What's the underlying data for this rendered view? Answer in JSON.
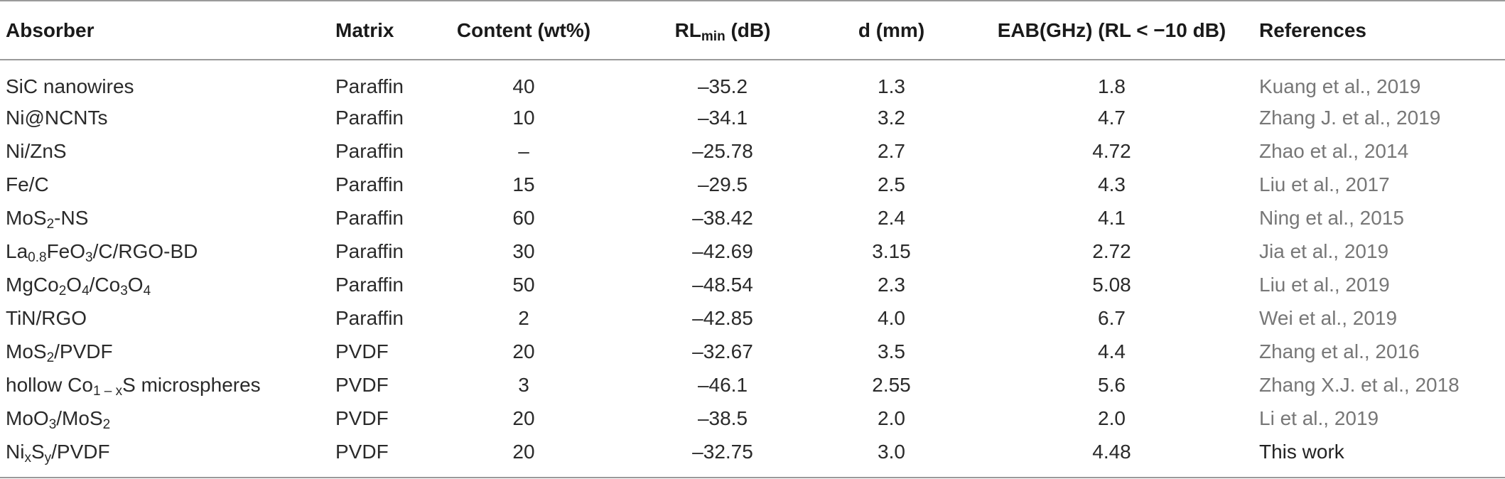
{
  "headers": {
    "absorber": "Absorber",
    "matrix": "Matrix",
    "content": "Content (wt%)",
    "rl_min_main": "RL",
    "rl_min_sub": "min",
    "rl_min_unit": " (dB)",
    "d": "d (mm)",
    "eab": "EAB(GHz) (RL < −10 dB)",
    "references": "References"
  },
  "rows": [
    {
      "absorber": [
        {
          "t": "SiC nanowires"
        }
      ],
      "matrix": "Paraffin",
      "content": "40",
      "rl_min": "–35.2",
      "d": "1.3",
      "eab": "1.8",
      "reference": "Kuang et al., 2019"
    },
    {
      "absorber": [
        {
          "t": "Ni@NCNTs"
        }
      ],
      "matrix": "Paraffin",
      "content": "10",
      "rl_min": "–34.1",
      "d": "3.2",
      "eab": "4.7",
      "reference": "Zhang J. et al., 2019"
    },
    {
      "absorber": [
        {
          "t": "Ni/ZnS"
        }
      ],
      "matrix": "Paraffin",
      "content": "–",
      "rl_min": "–25.78",
      "d": "2.7",
      "eab": "4.72",
      "reference": "Zhao et al., 2014"
    },
    {
      "absorber": [
        {
          "t": "Fe/C"
        }
      ],
      "matrix": "Paraffin",
      "content": "15",
      "rl_min": "–29.5",
      "d": "2.5",
      "eab": "4.3",
      "reference": "Liu et al., 2017"
    },
    {
      "absorber": [
        {
          "t": "MoS"
        },
        {
          "s": "2"
        },
        {
          "t": "-NS"
        }
      ],
      "matrix": "Paraffin",
      "content": "60",
      "rl_min": "–38.42",
      "d": "2.4",
      "eab": "4.1",
      "reference": "Ning et al., 2015"
    },
    {
      "absorber": [
        {
          "t": "La"
        },
        {
          "s": "0.8"
        },
        {
          "t": "FeO"
        },
        {
          "s": "3"
        },
        {
          "t": "/C/RGO-BD"
        }
      ],
      "matrix": "Paraffin",
      "content": "30",
      "rl_min": "–42.69",
      "d": "3.15",
      "eab": "2.72",
      "reference": "Jia et al., 2019"
    },
    {
      "absorber": [
        {
          "t": "MgCo"
        },
        {
          "s": "2"
        },
        {
          "t": "O"
        },
        {
          "s": "4"
        },
        {
          "t": "/Co"
        },
        {
          "s": "3"
        },
        {
          "t": "O"
        },
        {
          "s": "4"
        }
      ],
      "matrix": "Paraffin",
      "content": "50",
      "rl_min": "–48.54",
      "d": "2.3",
      "eab": "5.08",
      "reference": "Liu et al., 2019"
    },
    {
      "absorber": [
        {
          "t": "TiN/RGO"
        }
      ],
      "matrix": "Paraffin",
      "content": "2",
      "rl_min": "–42.85",
      "d": "4.0",
      "eab": "6.7",
      "reference": "Wei et al., 2019"
    },
    {
      "absorber": [
        {
          "t": "MoS"
        },
        {
          "s": "2"
        },
        {
          "t": "/PVDF"
        }
      ],
      "matrix": "PVDF",
      "content": "20",
      "rl_min": "–32.67",
      "d": "3.5",
      "eab": "4.4",
      "reference": "Zhang et al., 2016"
    },
    {
      "absorber": [
        {
          "t": "hollow Co"
        },
        {
          "s": "1 – x"
        },
        {
          "t": "S microspheres"
        }
      ],
      "matrix": "PVDF",
      "content": "3",
      "rl_min": "–46.1",
      "d": "2.55",
      "eab": "5.6",
      "reference": "Zhang X.J. et al., 2018"
    },
    {
      "absorber": [
        {
          "t": "MoO"
        },
        {
          "s": "3"
        },
        {
          "t": "/MoS"
        },
        {
          "s": "2"
        }
      ],
      "matrix": "PVDF",
      "content": "20",
      "rl_min": "–38.5",
      "d": "2.0",
      "eab": "2.0",
      "reference": "Li et al., 2019"
    },
    {
      "absorber": [
        {
          "t": "Ni"
        },
        {
          "s": "x"
        },
        {
          "t": "S"
        },
        {
          "s": "y"
        },
        {
          "t": "/PVDF"
        }
      ],
      "matrix": "PVDF",
      "content": "20",
      "rl_min": "–32.75",
      "d": "3.0",
      "eab": "4.48",
      "reference": "This work",
      "own": true
    }
  ]
}
